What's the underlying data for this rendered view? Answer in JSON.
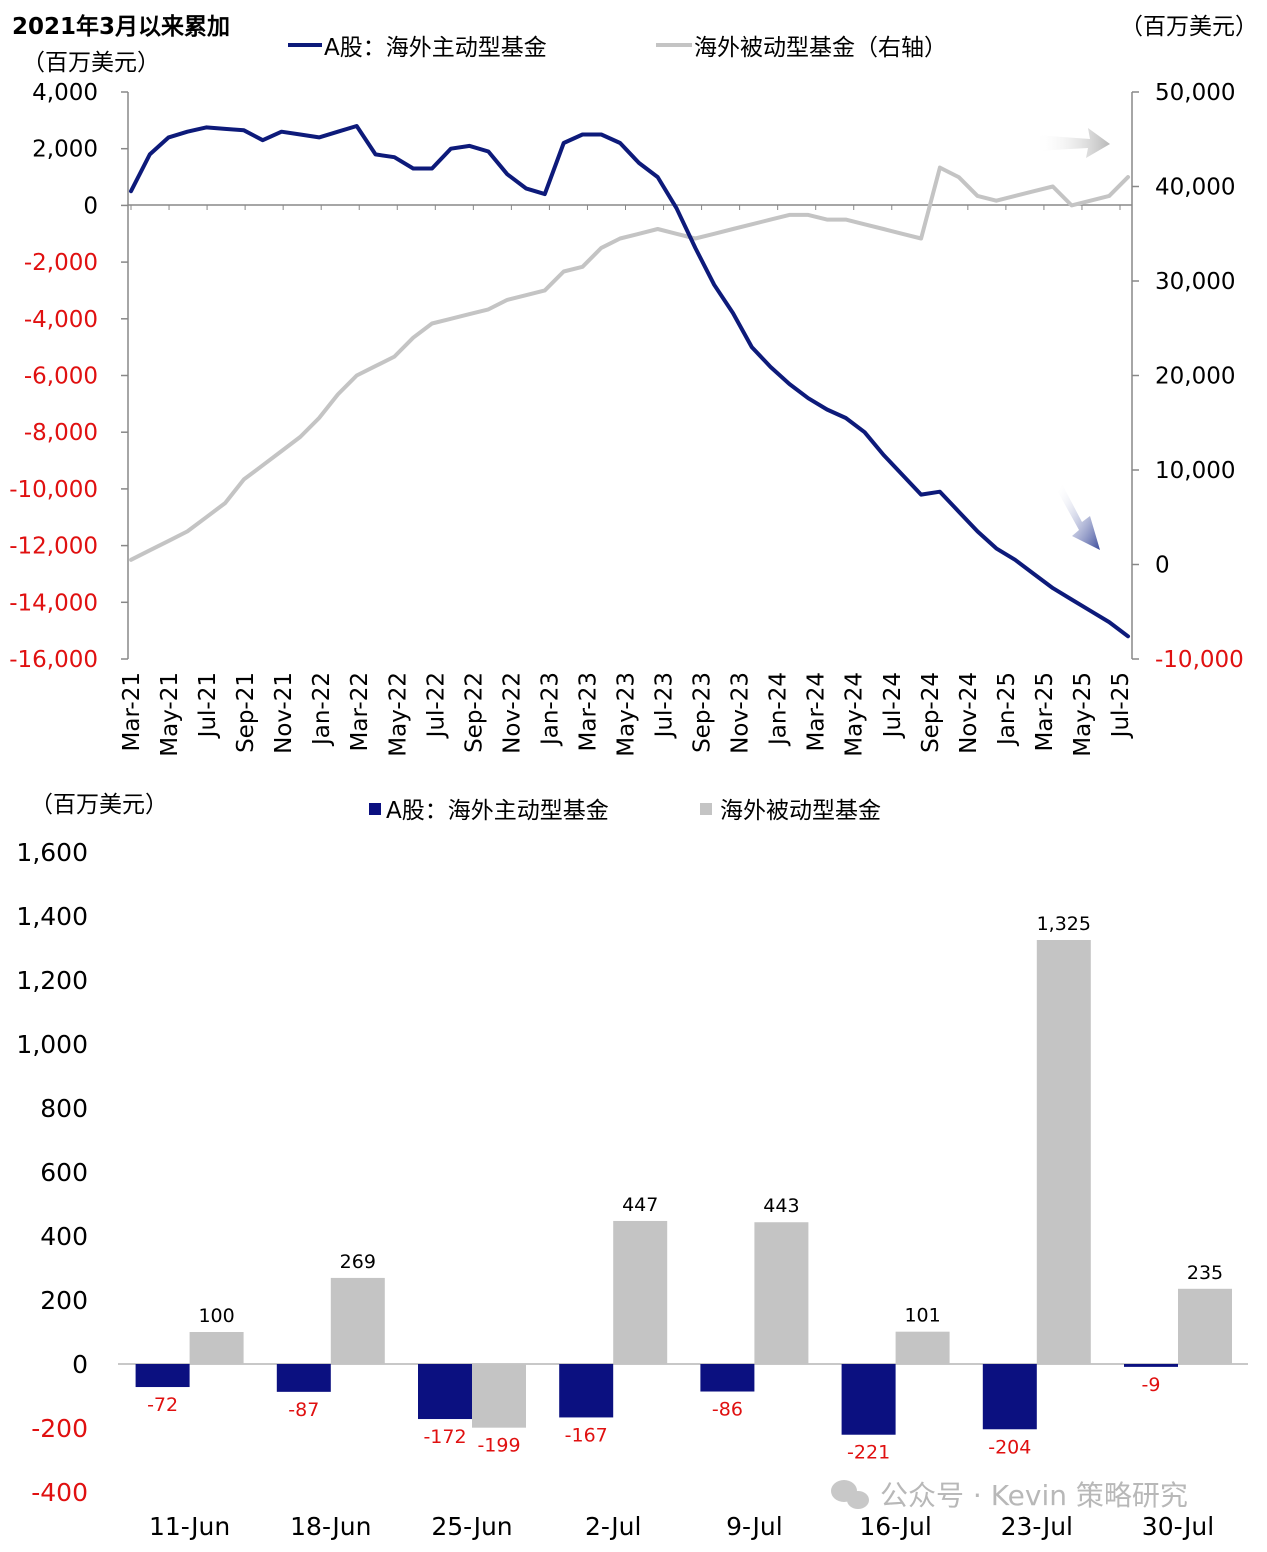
{
  "chart_data": [
    {
      "type": "line",
      "title": "2021年3月以来累加",
      "ylabel_left": "（百万美元）",
      "ylabel_right": "（百万美元）",
      "ylim_left": [
        -16000,
        4000
      ],
      "ylim_right": [
        -10000,
        50000
      ],
      "yticks_left": [
        "4,000",
        "2,000",
        "0",
        "-2,000",
        "-4,000",
        "-6,000",
        "-8,000",
        "-10,000",
        "-12,000",
        "-14,000",
        "-16,000"
      ],
      "yticks_right": [
        "50,000",
        "40,000",
        "30,000",
        "20,000",
        "10,000",
        "0",
        "-10,000"
      ],
      "xticks": [
        "Mar-21",
        "May-21",
        "Jul-21",
        "Sep-21",
        "Nov-21",
        "Jan-22",
        "Mar-22",
        "May-22",
        "Jul-22",
        "Sep-22",
        "Nov-22",
        "Jan-23",
        "Mar-23",
        "May-23",
        "Jul-23",
        "Sep-23",
        "Nov-23",
        "Jan-24",
        "Mar-24",
        "May-24",
        "Jul-24",
        "Sep-24",
        "Nov-24",
        "Jan-25",
        "Mar-25",
        "May-25",
        "Jul-25"
      ],
      "colors": {
        "active": "#0d1a7a",
        "passive": "#c4c4c4",
        "negative_tick": "#e01010"
      },
      "series": [
        {
          "name": "A股：海外主动型基金",
          "axis": "left",
          "x": [
            "2021-03",
            "2021-04",
            "2021-05",
            "2021-06",
            "2021-07",
            "2021-08",
            "2021-09",
            "2021-10",
            "2021-11",
            "2021-12",
            "2022-01",
            "2022-02",
            "2022-03",
            "2022-04",
            "2022-05",
            "2022-06",
            "2022-07",
            "2022-08",
            "2022-09",
            "2022-10",
            "2022-11",
            "2022-12",
            "2023-01",
            "2023-02",
            "2023-03",
            "2023-04",
            "2023-05",
            "2023-06",
            "2023-07",
            "2023-08",
            "2023-09",
            "2023-10",
            "2023-11",
            "2023-12",
            "2024-01",
            "2024-02",
            "2024-03",
            "2024-04",
            "2024-05",
            "2024-06",
            "2024-07",
            "2024-08",
            "2024-09",
            "2024-10",
            "2024-11",
            "2024-12",
            "2025-01",
            "2025-02",
            "2025-03",
            "2025-04",
            "2025-05",
            "2025-06",
            "2025-07",
            "2025-08"
          ],
          "values": [
            500,
            1800,
            2400,
            2600,
            2750,
            2700,
            2650,
            2300,
            2600,
            2500,
            2400,
            2600,
            2800,
            1800,
            1700,
            1300,
            1300,
            2000,
            2100,
            1900,
            1100,
            600,
            400,
            2200,
            2500,
            2500,
            2200,
            1500,
            1000,
            -100,
            -1500,
            -2800,
            -3800,
            -5000,
            -5700,
            -6300,
            -6800,
            -7200,
            -7500,
            -8000,
            -8800,
            -9500,
            -10200,
            -10100,
            -10800,
            -11500,
            -12100,
            -12500,
            -13000,
            -13500,
            -13900,
            -14300,
            -14700,
            -15200
          ]
        },
        {
          "name": "海外被动型基金（右轴）",
          "axis": "right",
          "x": [
            "2021-03",
            "2021-04",
            "2021-05",
            "2021-06",
            "2021-07",
            "2021-08",
            "2021-09",
            "2021-10",
            "2021-11",
            "2021-12",
            "2022-01",
            "2022-02",
            "2022-03",
            "2022-04",
            "2022-05",
            "2022-06",
            "2022-07",
            "2022-08",
            "2022-09",
            "2022-10",
            "2022-11",
            "2022-12",
            "2023-01",
            "2023-02",
            "2023-03",
            "2023-04",
            "2023-05",
            "2023-06",
            "2023-07",
            "2023-08",
            "2023-09",
            "2023-10",
            "2023-11",
            "2023-12",
            "2024-01",
            "2024-02",
            "2024-03",
            "2024-04",
            "2024-05",
            "2024-06",
            "2024-07",
            "2024-08",
            "2024-09",
            "2024-10",
            "2024-11",
            "2024-12",
            "2025-01",
            "2025-02",
            "2025-03",
            "2025-04",
            "2025-05",
            "2025-06",
            "2025-07",
            "2025-08"
          ],
          "values": [
            500,
            1500,
            2500,
            3500,
            5000,
            6500,
            9000,
            10500,
            12000,
            13500,
            15500,
            18000,
            20000,
            21000,
            22000,
            24000,
            25500,
            26000,
            26500,
            27000,
            28000,
            28500,
            29000,
            31000,
            31500,
            33500,
            34500,
            35000,
            35500,
            35000,
            34500,
            35000,
            35500,
            36000,
            36500,
            37000,
            37000,
            36500,
            36500,
            36000,
            35500,
            35000,
            34500,
            42000,
            41000,
            39000,
            38500,
            39000,
            39500,
            40000,
            38000,
            38500,
            39000,
            41000
          ]
        }
      ]
    },
    {
      "type": "bar",
      "ylabel": "（百万美元）",
      "ylim": [
        -400,
        1600
      ],
      "yticks": [
        "1,600",
        "1,400",
        "1,200",
        "1,000",
        "800",
        "600",
        "400",
        "200",
        "0",
        "-200",
        "-400"
      ],
      "categories": [
        "11-Jun",
        "18-Jun",
        "25-Jun",
        "2-Jul",
        "9-Jul",
        "16-Jul",
        "23-Jul",
        "30-Jul"
      ],
      "series": [
        {
          "name": "A股：海外主动型基金",
          "color": "#0b1080",
          "values": [
            -72,
            -87,
            -172,
            -167,
            -86,
            -221,
            -204,
            -9
          ],
          "labels": [
            "-72",
            "-87",
            "-172",
            "-167",
            "-86",
            "-221",
            "-204",
            "-9"
          ]
        },
        {
          "name": "海外被动型基金",
          "color": "#c4c4c4",
          "values": [
            100,
            269,
            -199,
            447,
            443,
            101,
            1325,
            235
          ],
          "labels": [
            "100",
            "269",
            "-199",
            "447",
            "443",
            "101",
            "1,325",
            "235"
          ]
        }
      ],
      "label_colors": {
        "negative": "#e01010",
        "positive": "#000000"
      }
    }
  ],
  "watermark": "公众号 · Kevin 策略研究"
}
